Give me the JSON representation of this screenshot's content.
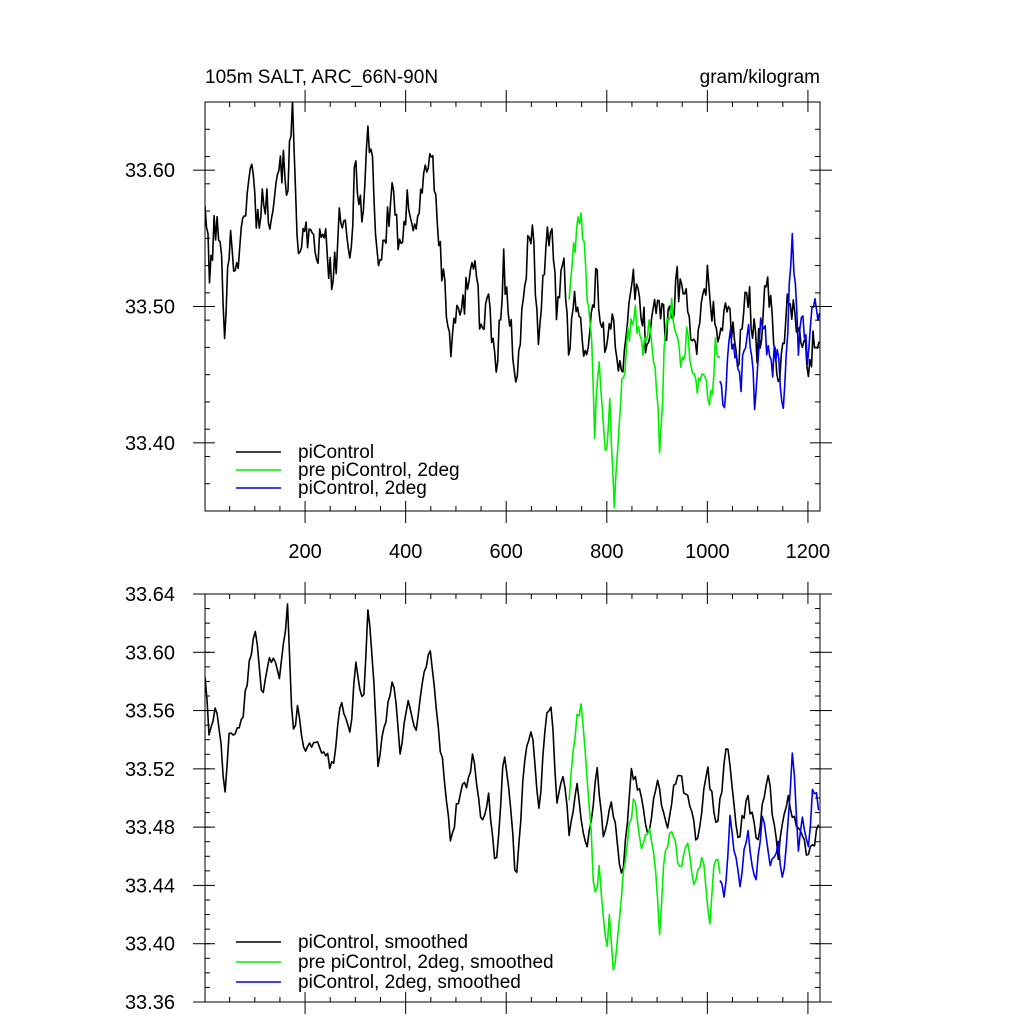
{
  "chart_data": [
    {
      "type": "line",
      "title": "105m SALT, ARC_66N-90N",
      "units": "gram/kilogram",
      "xlim": [
        1,
        1224
      ],
      "ylim": [
        33.35,
        33.65
      ],
      "xticks": [
        200,
        400,
        600,
        800,
        1000,
        1200
      ],
      "xtick_labels": [
        "200",
        "400",
        "600",
        "800",
        "1000",
        "1200"
      ],
      "yticks": [
        33.4,
        33.5,
        33.6
      ],
      "ytick_labels": [
        "33.40",
        "33.50",
        "33.60"
      ],
      "legend_position": "bottom-left",
      "series": [
        {
          "name": "piControl",
          "color": "#000000",
          "x_range": [
            1,
            1224
          ],
          "x": [
            1,
            10,
            20,
            30,
            40,
            50,
            60,
            75,
            85,
            95,
            105,
            115,
            130,
            150,
            165,
            175,
            185,
            200,
            220,
            240,
            255,
            270,
            290,
            300,
            315,
            325,
            333,
            345,
            360,
            375,
            390,
            405,
            420,
            435,
            450,
            460,
            475,
            490,
            505,
            520,
            535,
            550,
            565,
            580,
            595,
            610,
            620,
            635,
            650,
            665,
            680,
            690,
            700,
            715,
            725,
            740,
            760,
            780,
            795,
            810,
            830,
            850,
            870,
            880,
            900,
            920,
            940,
            960,
            980,
            1000,
            1020,
            1040,
            1060,
            1080,
            1100,
            1120,
            1140,
            1160,
            1180,
            1200,
            1224
          ],
          "y": [
            33.58,
            33.52,
            33.56,
            33.55,
            33.49,
            33.55,
            33.53,
            33.55,
            33.59,
            33.6,
            33.56,
            33.58,
            33.57,
            33.61,
            33.59,
            33.64,
            33.55,
            33.55,
            33.54,
            33.55,
            33.51,
            33.57,
            33.53,
            33.61,
            33.56,
            33.63,
            33.61,
            33.53,
            33.55,
            33.59,
            33.53,
            33.58,
            33.56,
            33.59,
            33.62,
            33.57,
            33.52,
            33.47,
            33.5,
            33.51,
            33.54,
            33.48,
            33.5,
            33.45,
            33.53,
            33.49,
            33.43,
            33.52,
            33.56,
            33.48,
            33.55,
            33.56,
            33.49,
            33.54,
            33.47,
            33.51,
            33.46,
            33.52,
            33.47,
            33.5,
            33.44,
            33.52,
            33.5,
            33.47,
            33.51,
            33.48,
            33.52,
            33.5,
            33.47,
            33.52,
            33.48,
            33.5,
            33.46,
            33.51,
            33.47,
            33.52,
            33.44,
            33.51,
            33.48,
            33.46,
            33.48
          ]
        },
        {
          "name": "pre piControl, 2deg",
          "color": "#00ee00",
          "x_range": [
            725,
            1025
          ],
          "x": [
            725,
            740,
            750,
            760,
            770,
            775,
            785,
            800,
            805,
            815,
            825,
            840,
            855,
            870,
            885,
            900,
            905,
            915,
            930,
            945,
            960,
            975,
            990,
            1005,
            1015,
            1025
          ],
          "y": [
            33.51,
            33.56,
            33.57,
            33.52,
            33.47,
            33.41,
            33.45,
            33.39,
            33.44,
            33.36,
            33.42,
            33.47,
            33.5,
            33.47,
            33.48,
            33.44,
            33.39,
            33.47,
            33.5,
            33.46,
            33.48,
            33.44,
            33.46,
            33.42,
            33.47,
            33.46
          ]
        },
        {
          "name": "piControl, 2deg",
          "color": "#0000ee",
          "x_range": [
            1025,
            1224
          ],
          "x": [
            1025,
            1035,
            1045,
            1055,
            1065,
            1080,
            1095,
            1110,
            1125,
            1140,
            1150,
            1160,
            1170,
            1180,
            1190,
            1200,
            1210,
            1224
          ],
          "y": [
            33.45,
            33.43,
            33.49,
            33.46,
            33.44,
            33.49,
            33.43,
            33.5,
            33.45,
            33.47,
            33.42,
            33.49,
            33.55,
            33.47,
            33.5,
            33.45,
            33.51,
            33.49
          ]
        }
      ]
    },
    {
      "type": "line",
      "title": "",
      "xlim": [
        1,
        1224
      ],
      "ylim": [
        33.36,
        33.64
      ],
      "yticks": [
        33.36,
        33.4,
        33.44,
        33.48,
        33.52,
        33.56,
        33.6,
        33.64
      ],
      "ytick_labels": [
        "33.36",
        "33.40",
        "33.44",
        "33.48",
        "33.52",
        "33.56",
        "33.60",
        "33.64"
      ],
      "legend_position": "bottom-left",
      "series": [
        {
          "name": "piControl, smoothed",
          "color": "#000000",
          "x_range": [
            1,
            1224
          ],
          "x": [
            1,
            10,
            20,
            30,
            40,
            50,
            60,
            75,
            85,
            100,
            115,
            130,
            150,
            165,
            175,
            185,
            200,
            220,
            240,
            255,
            270,
            290,
            300,
            315,
            325,
            333,
            345,
            360,
            375,
            390,
            405,
            420,
            435,
            450,
            460,
            475,
            490,
            505,
            520,
            535,
            550,
            565,
            580,
            595,
            610,
            620,
            635,
            650,
            665,
            680,
            690,
            700,
            715,
            725,
            740,
            760,
            780,
            795,
            810,
            830,
            850,
            870,
            880,
            900,
            920,
            940,
            960,
            980,
            1000,
            1020,
            1040,
            1060,
            1080,
            1100,
            1120,
            1140,
            1160,
            1180,
            1200,
            1224
          ],
          "y": [
            33.585,
            33.54,
            33.56,
            33.55,
            33.5,
            33.55,
            33.54,
            33.555,
            33.58,
            33.62,
            33.57,
            33.6,
            33.58,
            33.63,
            33.545,
            33.56,
            33.53,
            33.54,
            33.53,
            33.52,
            33.565,
            33.54,
            33.6,
            33.56,
            33.63,
            33.6,
            33.525,
            33.55,
            33.585,
            33.53,
            33.57,
            33.545,
            33.58,
            33.605,
            33.56,
            33.52,
            33.47,
            33.5,
            33.51,
            33.53,
            33.48,
            33.5,
            33.45,
            33.53,
            33.49,
            33.44,
            33.52,
            33.55,
            33.49,
            33.555,
            33.565,
            33.495,
            33.52,
            33.47,
            33.51,
            33.46,
            33.52,
            33.47,
            33.5,
            33.445,
            33.52,
            33.5,
            33.47,
            33.51,
            33.48,
            33.52,
            33.5,
            33.47,
            33.52,
            33.48,
            33.54,
            33.47,
            33.5,
            33.47,
            33.52,
            33.46,
            33.5,
            33.48,
            33.46,
            33.48
          ]
        },
        {
          "name": "pre piControl, 2deg, smoothed",
          "color": "#00ee00",
          "x_range": [
            725,
            1025
          ],
          "x": [
            725,
            740,
            750,
            760,
            770,
            775,
            785,
            800,
            805,
            815,
            825,
            840,
            855,
            870,
            885,
            900,
            905,
            915,
            930,
            945,
            960,
            975,
            990,
            1005,
            1015,
            1025
          ],
          "y": [
            33.5,
            33.555,
            33.565,
            33.52,
            33.47,
            33.43,
            33.45,
            33.39,
            33.42,
            33.375,
            33.42,
            33.47,
            33.5,
            33.465,
            33.48,
            33.44,
            33.41,
            33.46,
            33.48,
            33.45,
            33.47,
            33.44,
            33.46,
            33.415,
            33.46,
            33.45
          ]
        },
        {
          "name": "piControl, 2deg, smoothed",
          "color": "#0000ee",
          "x_range": [
            1025,
            1224
          ],
          "x": [
            1025,
            1035,
            1045,
            1055,
            1065,
            1080,
            1095,
            1110,
            1125,
            1140,
            1150,
            1160,
            1170,
            1180,
            1190,
            1200,
            1210,
            1224
          ],
          "y": [
            33.445,
            33.43,
            33.49,
            33.46,
            33.44,
            33.48,
            33.44,
            33.49,
            33.45,
            33.47,
            33.44,
            33.48,
            33.535,
            33.465,
            33.49,
            33.46,
            33.51,
            33.49
          ]
        }
      ]
    }
  ]
}
